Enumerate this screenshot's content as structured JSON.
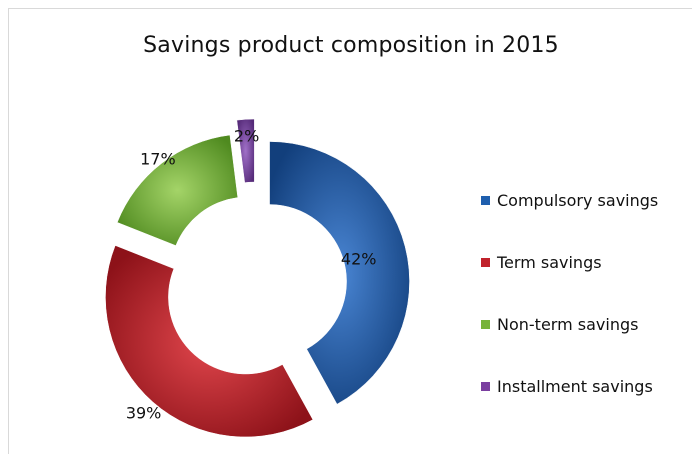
{
  "chart_data": {
    "type": "pie",
    "title": "Savings product composition in 2015",
    "donut": true,
    "exploded": true,
    "categories": [
      "Compulsory savings",
      "Term savings",
      "Non-term savings",
      "Installment savings"
    ],
    "values": [
      42,
      39,
      17,
      2
    ],
    "value_labels": [
      "42%",
      "39%",
      "17%",
      "2%"
    ],
    "colors": [
      "#1f5fae",
      "#c0222b",
      "#77b33a",
      "#7a3fa0"
    ],
    "legend_position": "right"
  }
}
